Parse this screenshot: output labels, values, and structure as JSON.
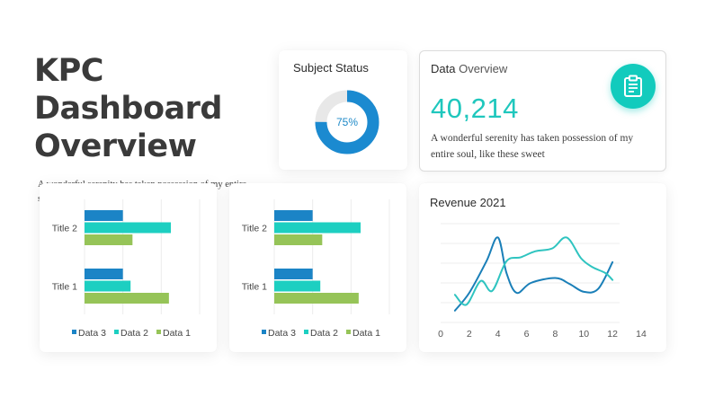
{
  "header": {
    "title_line1": "KPC Dashboard",
    "title_line2": "Overview",
    "subtitle": "A wonderful serenity has taken possession of my entire soul, like these sweet"
  },
  "subject_status": {
    "title": "Subject Status",
    "percent": 75,
    "label": "75%"
  },
  "data_overview": {
    "title_bold": "Data",
    "title_light": " Overview",
    "value": "40,214",
    "description": "A wonderful serenity has taken possession of my entire soul, like these sweet",
    "icon": "clipboard-icon"
  },
  "revenue": {
    "title": "Revenue 2021"
  },
  "colors": {
    "accent_teal": "#1fc7bd",
    "data3": "#1b84c6",
    "data2": "#1dcfc1",
    "data1": "#96c458",
    "donut_track": "#e8e8e8",
    "line_blue": "#1a7fb8",
    "line_teal": "#2fc4c0"
  },
  "chart_data": [
    {
      "type": "bar",
      "orientation": "horizontal",
      "categories": [
        "Title 1",
        "Title 2"
      ],
      "series": [
        {
          "name": "Data 3",
          "values": [
            2.0,
            2.0
          ]
        },
        {
          "name": "Data 2",
          "values": [
            2.4,
            4.5
          ]
        },
        {
          "name": "Data 1",
          "values": [
            4.4,
            2.5
          ]
        }
      ],
      "xlim": [
        0,
        6
      ],
      "legend": "bottom"
    },
    {
      "type": "bar",
      "orientation": "horizontal",
      "categories": [
        "Title 1",
        "Title 2"
      ],
      "series": [
        {
          "name": "Data 3",
          "values": [
            2.0,
            2.0
          ]
        },
        {
          "name": "Data 2",
          "values": [
            2.4,
            4.5
          ]
        },
        {
          "name": "Data 1",
          "values": [
            4.4,
            2.5
          ]
        }
      ],
      "xlim": [
        0,
        6
      ],
      "legend": "bottom"
    },
    {
      "type": "line",
      "title": "Revenue 2021",
      "xticks": [
        0,
        2,
        4,
        6,
        8,
        10,
        12,
        14
      ],
      "xlim": [
        0,
        14
      ],
      "ylim": [
        0,
        10
      ],
      "grid": true,
      "series": [
        {
          "x": [
            1.0,
            2.0,
            3.2,
            4.0,
            4.6,
            5.3,
            6.3,
            8.0,
            9.0,
            10.0,
            11.0,
            12.0
          ],
          "y": [
            1.2,
            3.0,
            6.2,
            8.6,
            5.0,
            3.0,
            4.0,
            4.5,
            3.9,
            3.1,
            3.4,
            6.1
          ]
        },
        {
          "x": [
            1.0,
            1.8,
            2.8,
            3.6,
            4.6,
            5.6,
            6.6,
            7.8,
            8.8,
            9.8,
            10.6,
            11.5,
            12.0
          ],
          "y": [
            2.8,
            1.8,
            4.2,
            3.2,
            6.2,
            6.6,
            7.2,
            7.5,
            8.6,
            6.5,
            5.6,
            5.0,
            4.3
          ]
        }
      ]
    }
  ]
}
